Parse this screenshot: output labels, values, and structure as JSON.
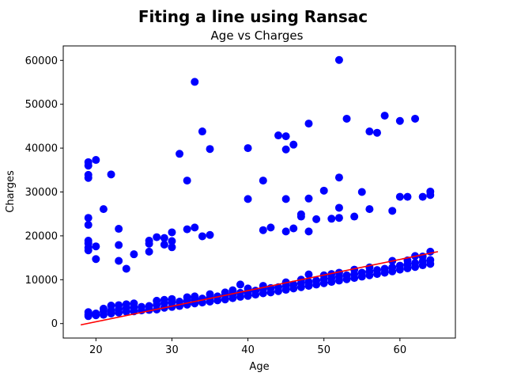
{
  "chart_data": {
    "type": "scatter",
    "suptitle": "Fiting a line using Ransac",
    "title": "Age vs Charges",
    "xlabel": "Age",
    "ylabel": "Charges",
    "xlim": [
      15.7,
      67.3
    ],
    "ylim": [
      -3300,
      63300
    ],
    "xticks": [
      20,
      30,
      40,
      50,
      60
    ],
    "yticks": [
      0,
      10000,
      20000,
      30000,
      40000,
      50000,
      60000
    ],
    "grid": false,
    "colors": {
      "points": "#0000ff",
      "line": "#ff0000"
    },
    "fit_line": {
      "x": [
        18,
        65
      ],
      "y": [
        -300,
        16400
      ]
    },
    "series": [
      {
        "kind": "scatter",
        "points": [
          [
            19,
            1700
          ],
          [
            19,
            2100
          ],
          [
            19,
            2600
          ],
          [
            20,
            1900
          ],
          [
            20,
            2300
          ],
          [
            21,
            2000
          ],
          [
            21,
            2700
          ],
          [
            21,
            3400
          ],
          [
            22,
            2300
          ],
          [
            22,
            3000
          ],
          [
            22,
            4100
          ],
          [
            23,
            2500
          ],
          [
            23,
            3300
          ],
          [
            23,
            4200
          ],
          [
            24,
            2700
          ],
          [
            24,
            3500
          ],
          [
            24,
            4400
          ],
          [
            25,
            2800
          ],
          [
            25,
            3700
          ],
          [
            25,
            4600
          ],
          [
            26,
            3000
          ],
          [
            26,
            3800
          ],
          [
            27,
            3100
          ],
          [
            27,
            4000
          ],
          [
            28,
            3200
          ],
          [
            28,
            4300
          ],
          [
            28,
            5200
          ],
          [
            29,
            3600
          ],
          [
            29,
            4600
          ],
          [
            29,
            5400
          ],
          [
            30,
            3800
          ],
          [
            30,
            4800
          ],
          [
            30,
            5600
          ],
          [
            31,
            4000
          ],
          [
            31,
            5000
          ],
          [
            32,
            4300
          ],
          [
            32,
            5200
          ],
          [
            32,
            6000
          ],
          [
            33,
            4600
          ],
          [
            33,
            5500
          ],
          [
            33,
            6200
          ],
          [
            34,
            4800
          ],
          [
            34,
            5700
          ],
          [
            35,
            5000
          ],
          [
            35,
            5900
          ],
          [
            35,
            6700
          ],
          [
            36,
            5300
          ],
          [
            36,
            6200
          ],
          [
            37,
            5500
          ],
          [
            37,
            6400
          ],
          [
            37,
            7100
          ],
          [
            38,
            5800
          ],
          [
            38,
            6700
          ],
          [
            38,
            7600
          ],
          [
            39,
            6100
          ],
          [
            39,
            7000
          ],
          [
            39,
            8900
          ],
          [
            40,
            6300
          ],
          [
            40,
            7200
          ],
          [
            40,
            8000
          ],
          [
            41,
            6600
          ],
          [
            41,
            7500
          ],
          [
            42,
            6900
          ],
          [
            42,
            7800
          ],
          [
            42,
            8600
          ],
          [
            43,
            7100
          ],
          [
            43,
            8100
          ],
          [
            44,
            7400
          ],
          [
            44,
            8300
          ],
          [
            45,
            7700
          ],
          [
            45,
            8600
          ],
          [
            45,
            9400
          ],
          [
            46,
            8000
          ],
          [
            46,
            8900
          ],
          [
            47,
            8300
          ],
          [
            47,
            9200
          ],
          [
            47,
            10000
          ],
          [
            48,
            8600
          ],
          [
            48,
            9500
          ],
          [
            48,
            11200
          ],
          [
            49,
            8900
          ],
          [
            49,
            9800
          ],
          [
            50,
            9200
          ],
          [
            50,
            10100
          ],
          [
            50,
            11000
          ],
          [
            51,
            9500
          ],
          [
            51,
            10400
          ],
          [
            51,
            11300
          ],
          [
            52,
            9800
          ],
          [
            52,
            10700
          ],
          [
            52,
            11600
          ],
          [
            53,
            10100
          ],
          [
            53,
            11000
          ],
          [
            54,
            10400
          ],
          [
            54,
            11300
          ],
          [
            54,
            12300
          ],
          [
            55,
            10700
          ],
          [
            55,
            11600
          ],
          [
            56,
            11000
          ],
          [
            56,
            11900
          ],
          [
            56,
            12800
          ],
          [
            57,
            11300
          ],
          [
            57,
            12200
          ],
          [
            58,
            11600
          ],
          [
            58,
            12500
          ],
          [
            59,
            11900
          ],
          [
            59,
            12800
          ],
          [
            59,
            14300
          ],
          [
            60,
            12300
          ],
          [
            60,
            13200
          ],
          [
            61,
            12600
          ],
          [
            61,
            13500
          ],
          [
            61,
            14400
          ],
          [
            62,
            12900
          ],
          [
            62,
            13800
          ],
          [
            62,
            15400
          ],
          [
            63,
            13300
          ],
          [
            63,
            14200
          ],
          [
            63,
            15300
          ],
          [
            64,
            13600
          ],
          [
            64,
            14500
          ],
          [
            64,
            16400
          ],
          [
            19,
            36800
          ],
          [
            19,
            36000
          ],
          [
            19,
            33900
          ],
          [
            19,
            33200
          ],
          [
            19,
            24100
          ],
          [
            19,
            22500
          ],
          [
            19,
            18900
          ],
          [
            19,
            18300
          ],
          [
            19,
            17300
          ],
          [
            19,
            16700
          ],
          [
            20,
            37300
          ],
          [
            20,
            17600
          ],
          [
            20,
            14700
          ],
          [
            21,
            26100
          ],
          [
            22,
            34000
          ],
          [
            23,
            21600
          ],
          [
            23,
            17900
          ],
          [
            23,
            14300
          ],
          [
            24,
            12500
          ],
          [
            25,
            15800
          ],
          [
            27,
            18900
          ],
          [
            27,
            18200
          ],
          [
            27,
            16400
          ],
          [
            28,
            19700
          ],
          [
            29,
            19500
          ],
          [
            29,
            18000
          ],
          [
            30,
            20800
          ],
          [
            30,
            18800
          ],
          [
            30,
            17400
          ],
          [
            31,
            38700
          ],
          [
            32,
            32600
          ],
          [
            32,
            21500
          ],
          [
            33,
            55100
          ],
          [
            33,
            21900
          ],
          [
            34,
            43800
          ],
          [
            34,
            19900
          ],
          [
            35,
            39800
          ],
          [
            35,
            20200
          ],
          [
            40,
            40000
          ],
          [
            40,
            28400
          ],
          [
            42,
            32600
          ],
          [
            42,
            21300
          ],
          [
            43,
            21900
          ],
          [
            44,
            42900
          ],
          [
            45,
            42700
          ],
          [
            45,
            39700
          ],
          [
            45,
            28400
          ],
          [
            45,
            21000
          ],
          [
            46,
            40800
          ],
          [
            46,
            21700
          ],
          [
            47,
            24900
          ],
          [
            47,
            24400
          ],
          [
            48,
            45600
          ],
          [
            48,
            28500
          ],
          [
            48,
            21000
          ],
          [
            49,
            23800
          ],
          [
            50,
            30300
          ],
          [
            51,
            23900
          ],
          [
            52,
            60100
          ],
          [
            52,
            33300
          ],
          [
            52,
            26400
          ],
          [
            52,
            24100
          ],
          [
            53,
            46700
          ],
          [
            54,
            24400
          ],
          [
            55,
            30000
          ],
          [
            56,
            43800
          ],
          [
            56,
            26100
          ],
          [
            57,
            43500
          ],
          [
            58,
            47400
          ],
          [
            59,
            25700
          ],
          [
            60,
            46200
          ],
          [
            60,
            28900
          ],
          [
            61,
            28900
          ],
          [
            62,
            46700
          ],
          [
            63,
            28900
          ],
          [
            64,
            30100
          ],
          [
            64,
            29300
          ]
        ]
      }
    ]
  }
}
